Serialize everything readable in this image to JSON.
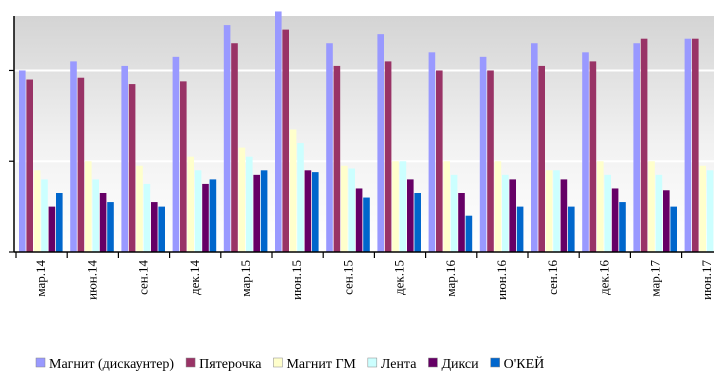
{
  "chart_data": {
    "type": "bar",
    "title": "",
    "xlabel": "",
    "ylabel": "",
    "ylim": [
      0,
      26
    ],
    "grid": true,
    "legend_position": "bottom",
    "categories": [
      "мар.14",
      "июн.14",
      "сен.14",
      "дек.14",
      "мар.15",
      "июн.15",
      "сен.15",
      "дек.15",
      "мар.16",
      "июн.16",
      "сен.16",
      "дек.16",
      "мар.17",
      "июн.17"
    ],
    "series": [
      {
        "name": "Магнит (дискаунтер)",
        "color": "#9999ff",
        "values": [
          20,
          21,
          20.5,
          21.5,
          25,
          26.5,
          23,
          24,
          22,
          21.5,
          23,
          22,
          23,
          23.5
        ]
      },
      {
        "name": "Пятерочка",
        "color": "#993366",
        "values": [
          19,
          19.2,
          18.5,
          18.8,
          23,
          24.5,
          20.5,
          21,
          20,
          20,
          20.5,
          21,
          23.5,
          23.5
        ]
      },
      {
        "name": "Магнит ГМ",
        "color": "#ffffcc",
        "values": [
          9,
          10,
          9.5,
          10.5,
          11.5,
          13.5,
          9.5,
          10,
          10,
          10,
          9,
          10,
          10,
          9.5
        ]
      },
      {
        "name": "Лента",
        "color": "#ccffff",
        "values": [
          8,
          8,
          7.5,
          9,
          10.5,
          12,
          9.2,
          10,
          8.5,
          8.5,
          9,
          8.5,
          8.5,
          9
        ]
      },
      {
        "name": "Дикси",
        "color": "#660066",
        "values": [
          5,
          6.5,
          5.5,
          7.5,
          8.5,
          9,
          7,
          8,
          6.5,
          8,
          8,
          7,
          6.8,
          6.5
        ]
      },
      {
        "name": "О'КЕЙ",
        "color": "#0066cc",
        "values": [
          6.5,
          5.5,
          5,
          8,
          9,
          8.8,
          6,
          6.5,
          4,
          5,
          5,
          5.5,
          5,
          5
        ]
      }
    ]
  }
}
